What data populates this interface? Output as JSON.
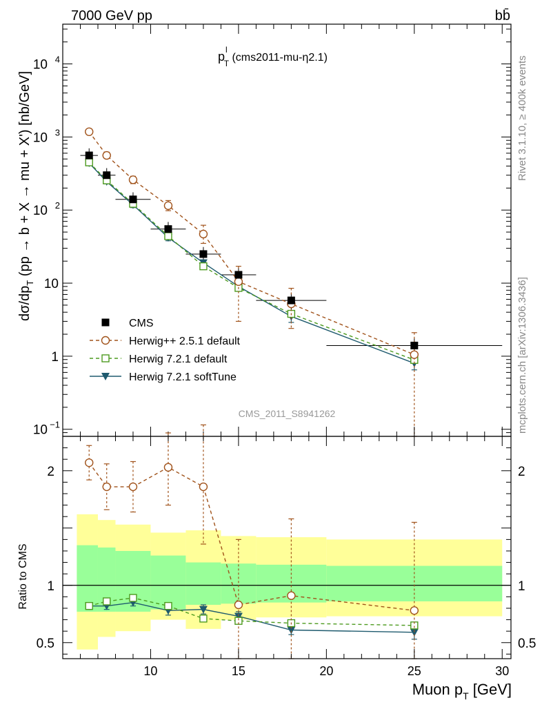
{
  "header": {
    "energy_label": "7000 GeV pp",
    "process_label": "bb̄",
    "side_label_top": "Rivet 3.1.10, ≥ 400k events",
    "side_label_bottom": "mcplots.cern.ch [arXiv:1306.3436]",
    "watermark": "CMS_2011_S8941262"
  },
  "chart_data": [
    {
      "type": "line",
      "panel": "main",
      "title_main": "p",
      "title_sup": "l",
      "title_sub": "T",
      "title_rest": " (cms2011-mu-η2.1)",
      "ylabel": "dσ/dp_T (pp → b + X → mu + X') [nb/GeV]",
      "yscale": "log",
      "ylim": [
        0.08,
        35000
      ],
      "xlim": [
        5,
        30.5
      ],
      "y_ticks": [
        {
          "value": 0.1,
          "base": "10",
          "exp": "−1"
        },
        {
          "value": 1,
          "base": "1",
          "exp": ""
        },
        {
          "value": 10,
          "base": "10",
          "exp": ""
        },
        {
          "value": 100,
          "base": "10",
          "exp": "2"
        },
        {
          "value": 1000,
          "base": "10",
          "exp": "3"
        },
        {
          "value": 10000,
          "base": "10",
          "exp": "4"
        }
      ],
      "x": [
        6.5,
        7.5,
        9,
        11,
        13,
        15,
        18,
        25
      ],
      "series": [
        {
          "name": "CMS",
          "color": "#000000",
          "marker": "square-filled",
          "values": [
            560,
            300,
            140,
            55,
            25,
            13,
            5.8,
            1.4
          ],
          "x_err": [
            0.5,
            0.5,
            1,
            1,
            1,
            1,
            2,
            5
          ],
          "y_err_rel": [
            0.25,
            0.25,
            0.25,
            0.25,
            0.25,
            0.25,
            0.25,
            0.25
          ]
        },
        {
          "name": "Herwig++ 2.5.1 default",
          "color": "#a0521a",
          "marker": "circle-open",
          "dash": "5,4",
          "values": [
            1180,
            560,
            260,
            115,
            47,
            10.5,
            5.2,
            1.05
          ],
          "err_up": [
            1280,
            620,
            290,
            135,
            62,
            17,
            8.5,
            2.1
          ],
          "err_down": [
            1090,
            510,
            230,
            98,
            35,
            3.0,
            2.4,
            0.08
          ]
        },
        {
          "name": "Herwig 7.2.1 default",
          "color": "#4c9a1e",
          "marker": "square-open",
          "dash": "5,4",
          "values": [
            450,
            255,
            122,
            44,
            17,
            8.6,
            3.8,
            0.89
          ]
        },
        {
          "name": "Herwig 7.2.1 softTune",
          "color": "#1e5a6e",
          "marker": "triangle-down-filled",
          "dash": "",
          "values": [
            440,
            245,
            118,
            42,
            19,
            9.0,
            3.5,
            0.8
          ],
          "err_up": [
            480,
            265,
            128,
            46,
            20.5,
            10.2,
            4.1,
            0.95
          ],
          "err_down": [
            410,
            228,
            108,
            38,
            17.5,
            7.8,
            2.9,
            0.65
          ]
        }
      ]
    },
    {
      "type": "line",
      "panel": "ratio",
      "ylabel": "Ratio to CMS",
      "ylim": [
        0.36,
        2.3
      ],
      "xlim": [
        5,
        30.5
      ],
      "xlabel_main": "Muon p",
      "xlabel_sub": "T",
      "xlabel_unit": " [GeV]",
      "x_ticks": [
        10,
        15,
        20,
        25,
        30
      ],
      "y_ticks": [
        0.5,
        1,
        2
      ],
      "bands": {
        "edges": [
          5.8,
          7,
          8,
          10,
          12,
          14,
          16,
          20,
          30
        ],
        "inner_low": [
          0.77,
          0.77,
          0.77,
          0.79,
          0.83,
          0.84,
          0.85,
          0.86
        ],
        "inner_high": [
          1.35,
          1.33,
          1.3,
          1.26,
          1.2,
          1.19,
          1.18,
          1.17
        ],
        "outer_low": [
          0.44,
          0.55,
          0.6,
          0.7,
          0.62,
          0.7,
          0.72,
          0.73
        ],
        "outer_high": [
          1.62,
          1.57,
          1.53,
          1.46,
          1.48,
          1.43,
          1.42,
          1.4
        ],
        "inner_color": "#99ff99",
        "outer_color": "#ffff99"
      },
      "x": [
        6.5,
        7.5,
        9,
        11,
        13,
        15,
        18,
        25
      ],
      "series": [
        {
          "name": "Herwig++ 2.5.1 default",
          "color": "#a0521a",
          "marker": "circle-open",
          "dash": "5,4",
          "values": [
            2.07,
            1.86,
            1.86,
            2.03,
            1.86,
            0.83,
            0.91,
            0.78
          ],
          "err_up": [
            2.22,
            2.06,
            2.08,
            2.33,
            2.4,
            1.4,
            1.58,
            1.55
          ],
          "err_down": [
            1.92,
            1.66,
            1.64,
            1.7,
            1.36,
            0.36,
            0.36,
            0.36
          ]
        },
        {
          "name": "Herwig 7.2.1 default",
          "color": "#4c9a1e",
          "marker": "square-open",
          "dash": "5,4",
          "values": [
            0.82,
            0.86,
            0.89,
            0.82,
            0.71,
            0.69,
            0.67,
            0.65
          ]
        },
        {
          "name": "Herwig 7.2.1 softTune",
          "color": "#1e5a6e",
          "marker": "triangle-down-filled",
          "dash": "",
          "values": [
            0.82,
            0.82,
            0.85,
            0.78,
            0.79,
            0.73,
            0.61,
            0.59
          ],
          "err_up": [
            0.85,
            0.85,
            0.88,
            0.82,
            0.83,
            0.77,
            0.64,
            0.65
          ],
          "err_down": [
            0.79,
            0.79,
            0.82,
            0.74,
            0.75,
            0.69,
            0.57,
            0.53
          ]
        }
      ]
    }
  ]
}
